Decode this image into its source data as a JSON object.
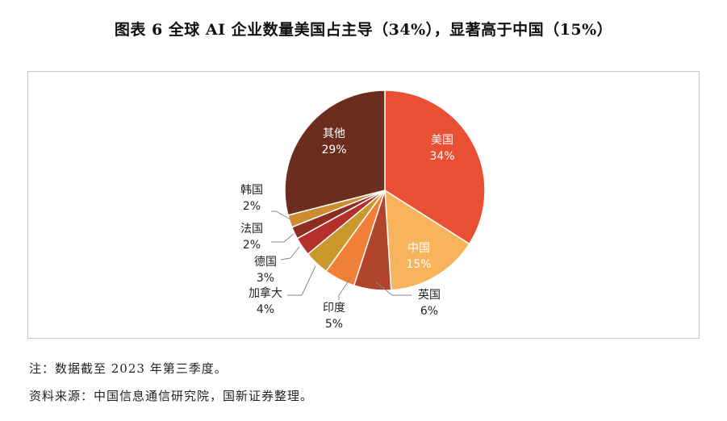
{
  "title": "图表 6  全球 AI 企业数量美国占主导（34%），显著高于中国（15%）",
  "chart_data": {
    "type": "pie",
    "slices": [
      {
        "label": "美国",
        "value": 34,
        "value_label": "34%",
        "color": "#e94f32"
      },
      {
        "label": "中国",
        "value": 15,
        "value_label": "15%",
        "color": "#f8b35d"
      },
      {
        "label": "英国",
        "value": 6,
        "value_label": "6%",
        "color": "#b0452b"
      },
      {
        "label": "印度",
        "value": 5,
        "value_label": "5%",
        "color": "#f07f37"
      },
      {
        "label": "加拿大",
        "value": 4,
        "value_label": "4%",
        "color": "#c99a2b"
      },
      {
        "label": "德国",
        "value": 3,
        "value_label": "3%",
        "color": "#b5302a"
      },
      {
        "label": "法国",
        "value": 2,
        "value_label": "2%",
        "color": "#8e2e22"
      },
      {
        "label": "韩国",
        "value": 2,
        "value_label": "2%",
        "color": "#cf8b2f"
      },
      {
        "label": "其他",
        "value": 29,
        "value_label": "29%",
        "color": "#6b2e1e"
      }
    ]
  },
  "notes": {
    "note": "注：数据截至 2023 年第三季度。",
    "source": "资料来源：中国信息通信研究院，国新证券整理。"
  }
}
